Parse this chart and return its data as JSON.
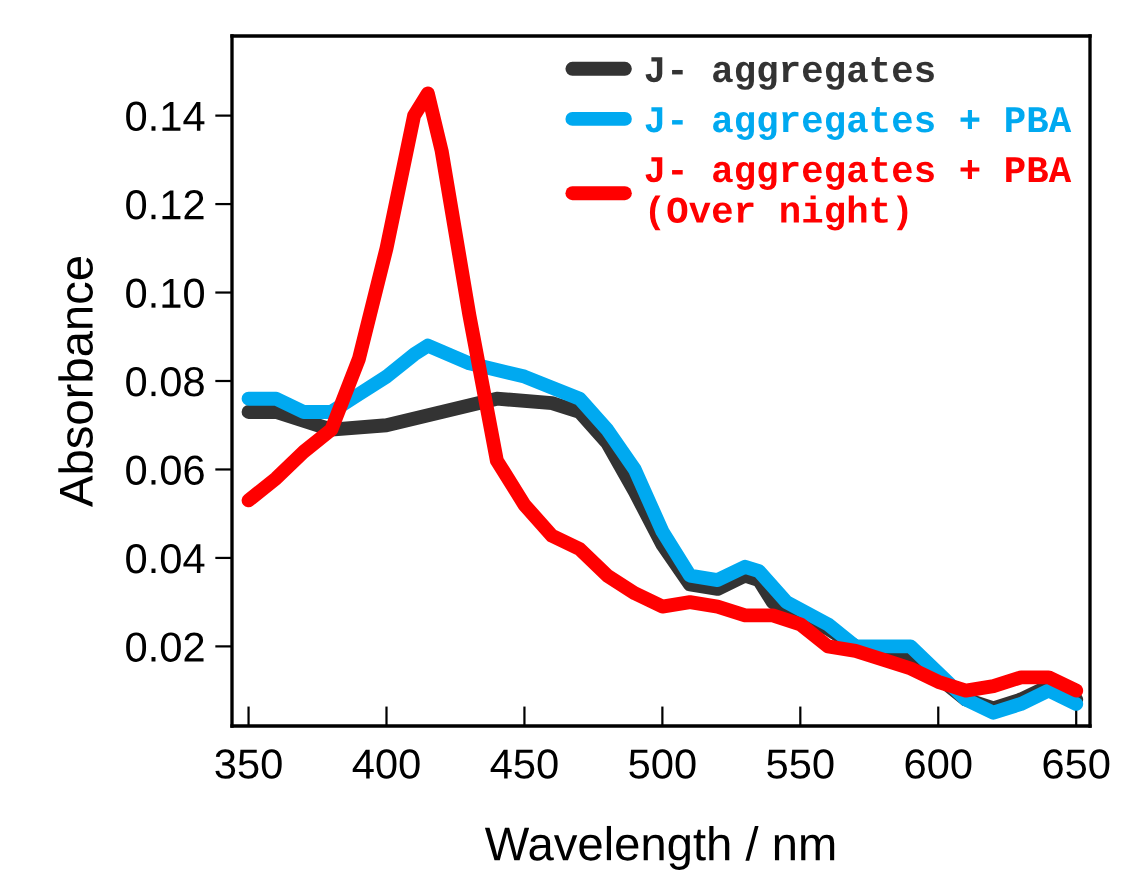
{
  "chart_data": {
    "type": "line",
    "xlabel": "Wavelength / nm",
    "ylabel": "Absorbance",
    "xlim": [
      344,
      655
    ],
    "xticks": [
      350,
      400,
      450,
      500,
      550,
      600,
      650
    ],
    "ylim": [
      0.002,
      0.158
    ],
    "yticks": [
      0.02,
      0.04,
      0.06,
      0.08,
      {
        "value": 0.1,
        "label": "0.10"
      },
      0.12,
      0.14
    ],
    "grid": false,
    "legend": "top right",
    "marker": "none",
    "line_style": "solid",
    "series": [
      {
        "name": "J- aggregates",
        "color": "#333333",
        "x": [
          350,
          360,
          380,
          400,
          420,
          440,
          460,
          470,
          480,
          490,
          500,
          510,
          520,
          530,
          535,
          540,
          550,
          560,
          570,
          580,
          590,
          600,
          610,
          620,
          630,
          640,
          650
        ],
        "values": [
          0.073,
          0.073,
          0.069,
          0.07,
          0.073,
          0.076,
          0.075,
          0.073,
          0.066,
          0.055,
          0.043,
          0.034,
          0.033,
          0.036,
          0.035,
          0.03,
          0.027,
          0.024,
          0.02,
          0.018,
          0.017,
          0.013,
          0.008,
          0.006,
          0.008,
          0.011,
          0.008
        ]
      },
      {
        "name": "J- aggregates + PBA",
        "color": "#00a9f0",
        "x": [
          350,
          360,
          370,
          380,
          390,
          400,
          410,
          415,
          430,
          450,
          470,
          480,
          490,
          500,
          510,
          520,
          530,
          535,
          545,
          560,
          570,
          590,
          600,
          610,
          620,
          630,
          640,
          650
        ],
        "values": [
          0.076,
          0.076,
          0.073,
          0.073,
          0.077,
          0.081,
          0.086,
          0.088,
          0.084,
          0.081,
          0.076,
          0.069,
          0.06,
          0.046,
          0.036,
          0.035,
          0.038,
          0.037,
          0.03,
          0.025,
          0.02,
          0.02,
          0.014,
          0.008,
          0.005,
          0.007,
          0.01,
          0.007
        ]
      },
      {
        "name": "J- aggregates + PBA\n(Over night)",
        "color": "#ff0000",
        "x": [
          350,
          360,
          370,
          380,
          390,
          400,
          410,
          415,
          420,
          430,
          440,
          450,
          460,
          470,
          480,
          490,
          500,
          510,
          520,
          530,
          540,
          550,
          560,
          570,
          580,
          590,
          600,
          610,
          620,
          630,
          640,
          650
        ],
        "values": [
          0.053,
          0.058,
          0.064,
          0.069,
          0.085,
          0.11,
          0.14,
          0.145,
          0.132,
          0.095,
          0.062,
          0.052,
          0.045,
          0.042,
          0.036,
          0.032,
          0.029,
          0.03,
          0.029,
          0.027,
          0.027,
          0.025,
          0.02,
          0.019,
          0.017,
          0.015,
          0.012,
          0.01,
          0.011,
          0.013,
          0.013,
          0.01
        ]
      }
    ]
  }
}
